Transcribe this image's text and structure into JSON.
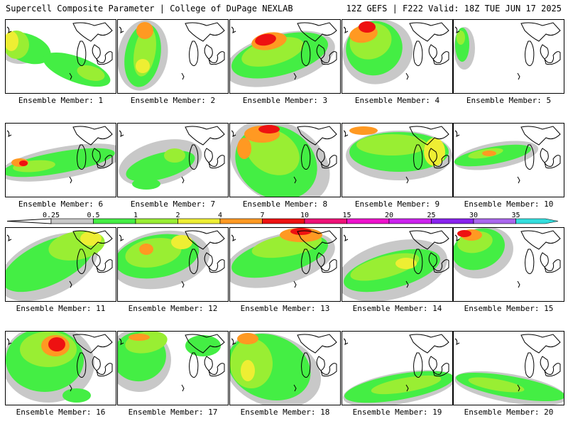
{
  "header": {
    "left_title": "Supercell Composite Parameter | College of DuPage NEXLAB",
    "right_title": "12Z GEFS | F222 Valid: 18Z TUE JUN 17 2025"
  },
  "colorbar": {
    "ticks": [
      "0.25",
      "0.5",
      "1",
      "2",
      "4",
      "7",
      "10",
      "15",
      "20",
      "25",
      "30",
      "35"
    ],
    "colors": [
      "#c8c8c8",
      "#44ee44",
      "#99ee33",
      "#eeee33",
      "#ff9922",
      "#ee1111",
      "#ee1177",
      "#ee11cc",
      "#cc22ee",
      "#8822ee",
      "#aa66ee",
      "#33dddd"
    ]
  },
  "panels": [
    {
      "label": "Ensemble Member: 1"
    },
    {
      "label": "Ensemble Member: 2"
    },
    {
      "label": "Ensemble Member: 3"
    },
    {
      "label": "Ensemble Member: 4"
    },
    {
      "label": "Ensemble Member: 5"
    },
    {
      "label": "Ensemble Member: 6"
    },
    {
      "label": "Ensemble Member: 7"
    },
    {
      "label": "Ensemble Member: 8"
    },
    {
      "label": "Ensemble Member: 9"
    },
    {
      "label": "Ensemble Member: 10"
    },
    {
      "label": "Ensemble Member: 11"
    },
    {
      "label": "Ensemble Member: 12"
    },
    {
      "label": "Ensemble Member: 13"
    },
    {
      "label": "Ensemble Member: 14"
    },
    {
      "label": "Ensemble Member: 15"
    },
    {
      "label": "Ensemble Member: 16"
    },
    {
      "label": "Ensemble Member: 17"
    },
    {
      "label": "Ensemble Member: 18"
    },
    {
      "label": "Ensemble Member: 19"
    },
    {
      "label": "Ensemble Member: 20"
    }
  ]
}
